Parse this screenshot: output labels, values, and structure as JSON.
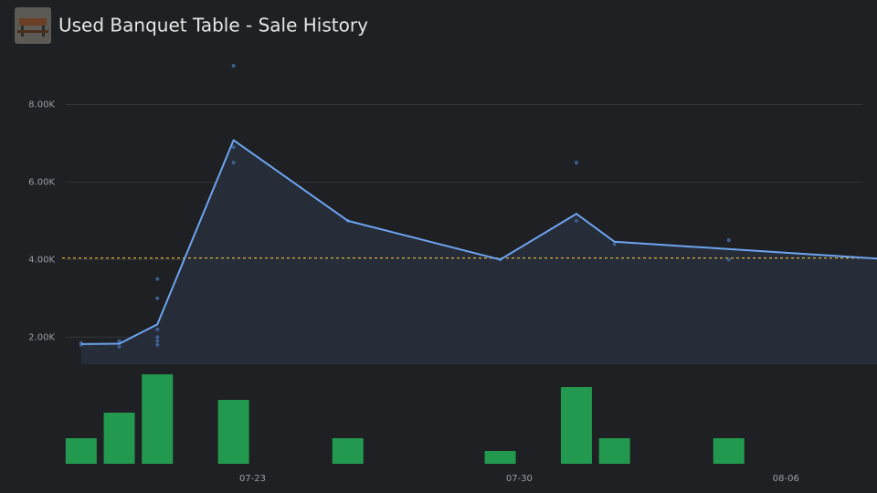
{
  "chart_data": {
    "type": "line",
    "title": "Used Banquet Table - Sale History",
    "x": [
      "07-18",
      "07-19",
      "07-20",
      "07-22",
      "07-25",
      "07-29",
      "07-31",
      "08-01",
      "08-08"
    ],
    "values": [
      1820,
      1830,
      2330,
      7080,
      5000,
      4000,
      5180,
      4460,
      4020
    ],
    "color": "#6ea4f0",
    "area_color": "#262c38",
    "scatter": {
      "x": [
        "07-18",
        "07-18",
        "07-19",
        "07-19",
        "07-19",
        "07-20",
        "07-20",
        "07-20",
        "07-20",
        "07-20",
        "07-20",
        "07-22",
        "07-22",
        "07-22",
        "07-25",
        "07-29",
        "07-31",
        "07-31",
        "08-01",
        "08-04",
        "08-04"
      ],
      "values": [
        1850,
        1800,
        1900,
        1750,
        1850,
        2000,
        1900,
        1800,
        3000,
        2200,
        3500,
        9000,
        6900,
        6500,
        5000,
        4000,
        6500,
        5000,
        4400,
        4500,
        4000
      ],
      "color": "#3d5f8f"
    },
    "volume": {
      "x": [
        "07-18",
        "07-19",
        "07-20",
        "07-22",
        "07-25",
        "07-29",
        "07-31",
        "08-01",
        "08-04"
      ],
      "values": [
        2,
        4,
        7,
        5,
        2,
        1,
        6,
        2,
        2
      ],
      "color": "#23994f"
    },
    "average": 4040,
    "average_color": "#d9b43a",
    "xlim": [
      "07-18",
      "08-08"
    ],
    "xticks": [
      "07-23",
      "07-30",
      "08-06"
    ],
    "ylim": [
      1300,
      9000
    ],
    "yticks": [
      {
        "value": 2000,
        "label": "2.00K"
      },
      {
        "value": 4000,
        "label": "4.00K"
      },
      {
        "value": 6000,
        "label": "6.00K"
      },
      {
        "value": 8000,
        "label": "8.00K"
      }
    ],
    "grid": true
  }
}
